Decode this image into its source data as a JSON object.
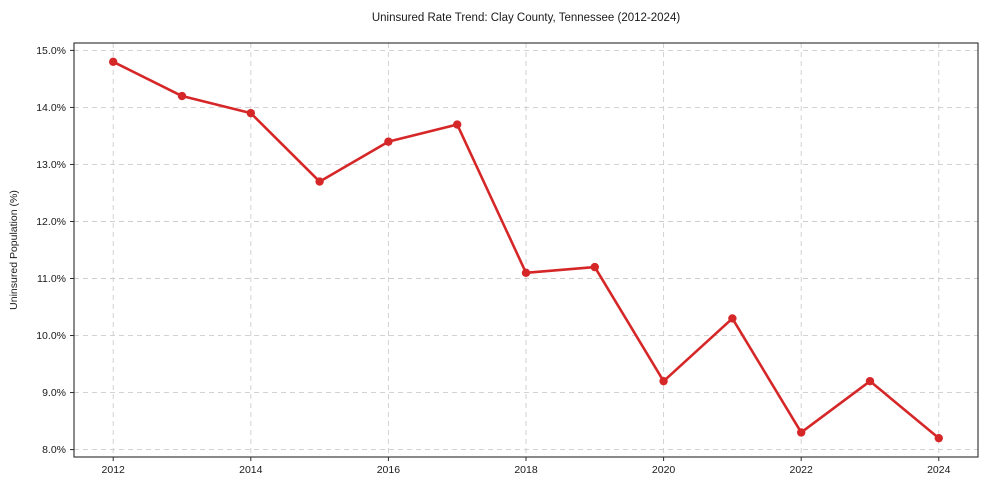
{
  "chart_data": {
    "type": "line",
    "title": "Uninsured Rate Trend: Clay County, Tennessee (2012-2024)",
    "xlabel": "",
    "ylabel": "Uninsured Population (%)",
    "x": [
      2012,
      2013,
      2014,
      2015,
      2016,
      2017,
      2018,
      2019,
      2020,
      2021,
      2022,
      2023,
      2024
    ],
    "series": [
      {
        "name": "Uninsured Population (%)",
        "values": [
          14.8,
          14.2,
          13.9,
          12.7,
          13.4,
          13.7,
          11.1,
          11.2,
          9.2,
          10.3,
          8.3,
          9.2,
          8.2
        ],
        "color": "#d62728",
        "marker": "circle",
        "line_width": 2.6,
        "marker_radius": 4.2
      }
    ],
    "x_ticks": [
      2012,
      2014,
      2016,
      2018,
      2020,
      2022,
      2024
    ],
    "x_tick_labels": [
      "2012",
      "2014",
      "2016",
      "2018",
      "2020",
      "2022",
      "2024"
    ],
    "y_ticks": [
      8,
      9,
      10,
      11,
      12,
      13,
      14,
      15
    ],
    "y_tick_labels": [
      "8.0%",
      "9.0%",
      "10.0%",
      "11.0%",
      "12.0%",
      "13.0%",
      "14.0%",
      "15.0%"
    ],
    "xlim": [
      2011.43,
      2024.57
    ],
    "ylim": [
      7.87,
      15.13
    ],
    "grid": "dashed",
    "legend_position": "none",
    "colors": {
      "line": "#d62728",
      "grid": "#cdcdcd",
      "spine": "#2b2b2b",
      "text": "#1a1a1a",
      "background": "#ffffff"
    }
  }
}
